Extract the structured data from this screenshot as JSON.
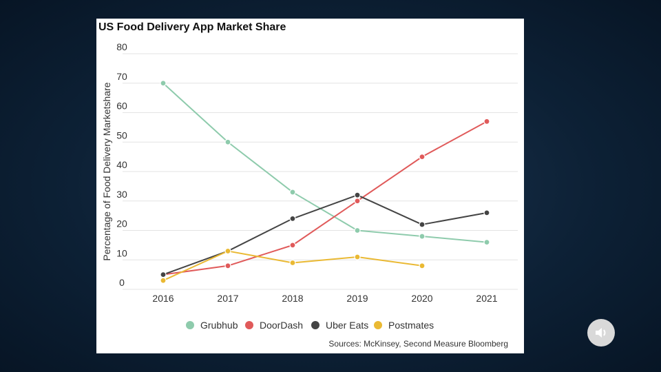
{
  "chart_data": {
    "type": "line",
    "title": "US Food Delivery App Market Share",
    "xlabel": "",
    "ylabel": "Percentage of Food Delivery Marketshare",
    "x": [
      "2016",
      "2017",
      "2018",
      "2019",
      "2020",
      "2021"
    ],
    "ylim": [
      0,
      80
    ],
    "yticks": [
      "0",
      "10",
      "20",
      "30",
      "40",
      "50",
      "60",
      "70",
      "80"
    ],
    "grid": true,
    "legend_position": "bottom",
    "series": [
      {
        "name": "Grubhub",
        "color": "#8ecbac",
        "values": [
          70,
          50,
          33,
          20,
          18,
          16
        ]
      },
      {
        "name": "DoorDash",
        "color": "#e05a5a",
        "values": [
          5,
          8,
          15,
          30,
          45,
          57
        ]
      },
      {
        "name": "Uber Eats",
        "color": "#444444",
        "values": [
          5,
          13,
          24,
          32,
          22,
          26
        ]
      },
      {
        "name": "Postmates",
        "color": "#eab933",
        "values": [
          3,
          13,
          9,
          11,
          8,
          null
        ]
      }
    ],
    "source": "Sources: McKinsey, Second Measure Bloomberg"
  },
  "audio_icon": "speaker-icon"
}
